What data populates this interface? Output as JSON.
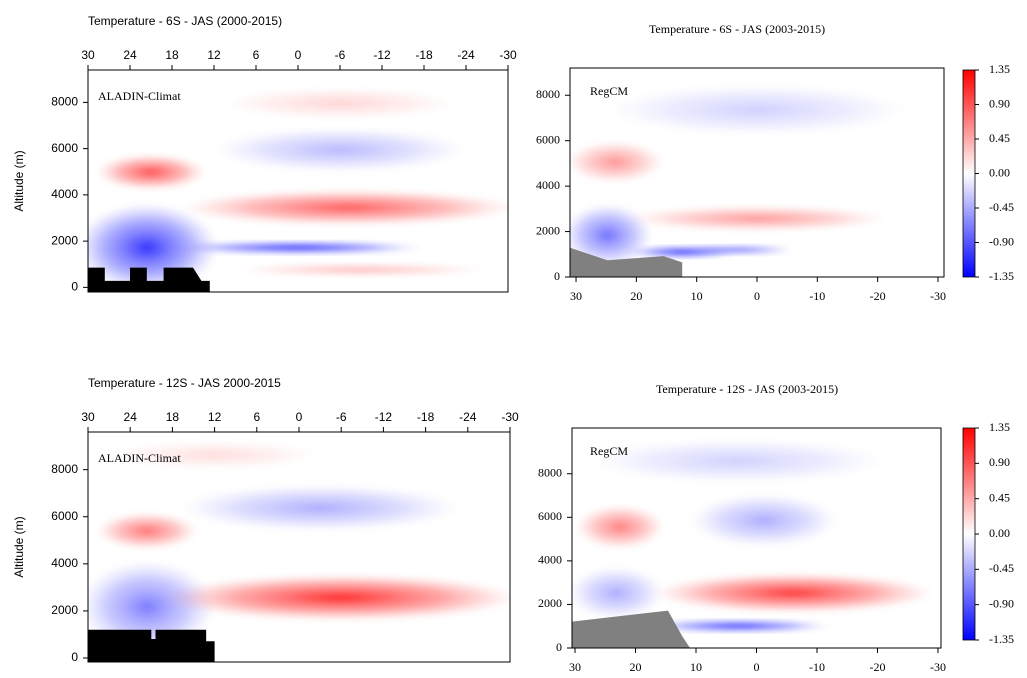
{
  "chart_data": [
    {
      "type": "contour",
      "title": "Temperature - 6S - JAS (2000-2015)",
      "ylabel": "Altitude (m)",
      "annotation": "ALADIN-Climat",
      "xlim": [
        30,
        -30
      ],
      "xticks": [
        30,
        24,
        18,
        12,
        6,
        0,
        -6,
        -12,
        -18,
        -24,
        -30
      ],
      "ylim": [
        -200,
        9400
      ],
      "yticks": [
        0,
        2000,
        4000,
        6000,
        8000
      ],
      "terrain_color": "#000000"
    },
    {
      "type": "contour",
      "title": "Temperature - 6S - JAS (2003-2015)",
      "annotation": "RegCM",
      "xlim": [
        31,
        -31
      ],
      "xticks": [
        30,
        20,
        10,
        0,
        -10,
        -20,
        -30
      ],
      "ylim": [
        0,
        9200
      ],
      "yticks": [
        0,
        2000,
        4000,
        6000,
        8000
      ],
      "terrain_color": "#808080",
      "colorbar": {
        "clim": [
          -1.35,
          1.35
        ],
        "ticks": [
          1.35,
          {
            "value": 0.9,
            "label": "0.90"
          },
          0.45,
          {
            "value": 0,
            "label": "0.00"
          },
          -0.45,
          {
            "value": -0.9,
            "label": "-0.90"
          },
          -1.35
        ],
        "colors": [
          "#0000ff",
          "#ffffff",
          "#ff0000"
        ]
      }
    },
    {
      "type": "contour",
      "title": "Temperature - 12S - JAS 2000-2015",
      "ylabel": "Altitude (m)",
      "annotation": "ALADIN-Climat",
      "xlim": [
        30,
        -30
      ],
      "xticks": [
        30,
        24,
        18,
        12,
        6,
        0,
        -6,
        -12,
        -18,
        -24,
        -30
      ],
      "ylim": [
        -170,
        9600
      ],
      "yticks": [
        0,
        2000,
        4000,
        6000,
        8000
      ],
      "terrain_color": "#000000"
    },
    {
      "type": "contour",
      "title": "Temperature - 12S - JAS (2003-2015)",
      "annotation": "RegCM",
      "xlim": [
        30.5,
        -30.5
      ],
      "xticks": [
        30,
        20,
        10,
        0,
        -10,
        -20,
        -30
      ],
      "ylim": [
        0,
        10100
      ],
      "yticks": [
        0,
        2000,
        4000,
        6000,
        8000
      ],
      "terrain_color": "#808080",
      "colorbar": {
        "clim": [
          -1.35,
          1.35
        ],
        "ticks": [
          1.35,
          {
            "value": 0.9,
            "label": "0.90"
          },
          0.45,
          {
            "value": 0,
            "label": "0.00"
          },
          -0.45,
          {
            "value": -0.9,
            "label": "-0.90"
          },
          -1.35
        ],
        "colors": [
          "#0000ff",
          "#ffffff",
          "#ff0000"
        ]
      }
    }
  ]
}
